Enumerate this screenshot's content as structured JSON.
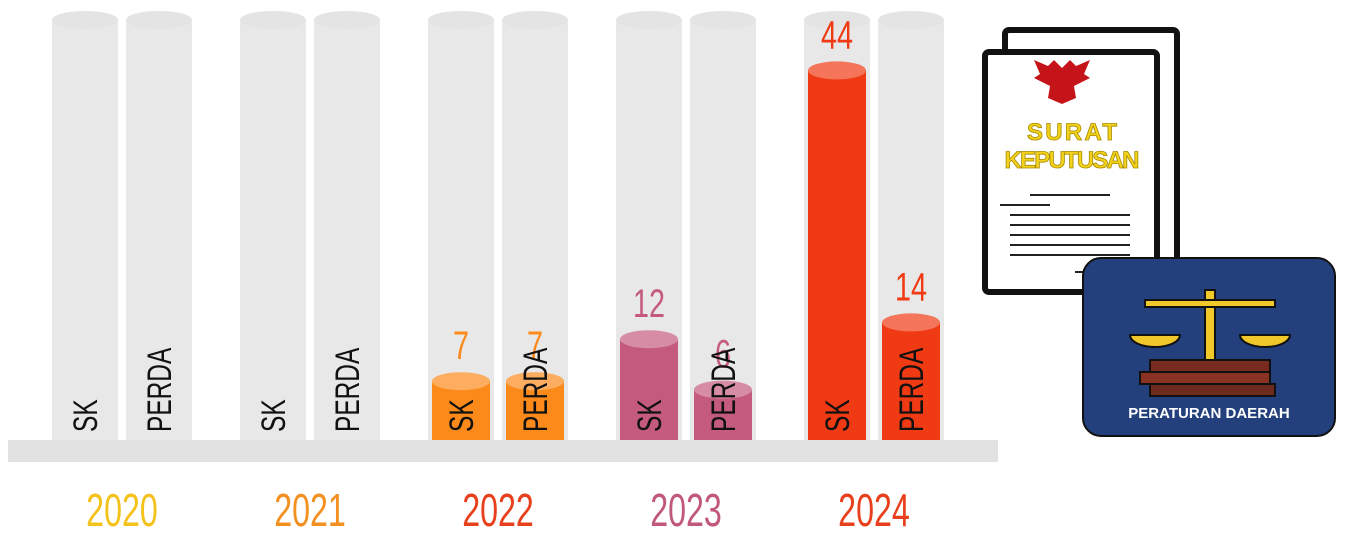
{
  "chart_data": {
    "type": "bar",
    "categories": [
      "2020",
      "2021",
      "2022",
      "2023",
      "2024"
    ],
    "category_colors": [
      "#f5c21b",
      "#f39020",
      "#e8401c",
      "#c2577e",
      "#e8401c"
    ],
    "bar_colors": [
      "#f5c21b",
      "#f39020",
      "#fb8a1b",
      "#c45b7e",
      "#f03a14"
    ],
    "series": [
      {
        "name": "SK",
        "values": [
          0,
          0,
          7,
          12,
          44
        ]
      },
      {
        "name": "PERDA",
        "values": [
          0,
          0,
          7,
          6,
          14
        ]
      }
    ],
    "ylim": [
      0,
      50
    ]
  },
  "illustration": {
    "document_title_1": "SURAT",
    "document_title_2": "KEPUTUSAN",
    "badge": "PERATURAN DAERAH"
  }
}
